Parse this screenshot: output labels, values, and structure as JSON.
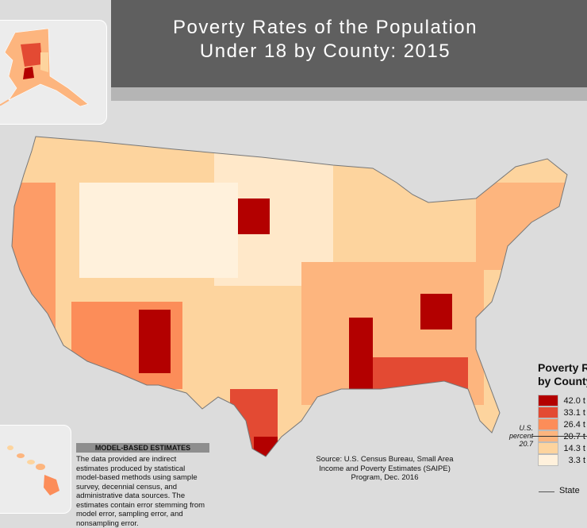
{
  "title": {
    "line1": "Poverty Rates of the Population",
    "line2": "Under 18 by County: 2015"
  },
  "model_based": {
    "heading": "MODEL-BASED ESTIMATES",
    "text": "The data provided are indirect estimates produced by statistical model-based methods using sample survey, decennial census, and administrative data sources. The estimates contain error stemming from model error, sampling error, and nonsampling error."
  },
  "source": "Source: U.S. Census Bureau, Small Area Income and Poverty Estimates (SAIPE) Program, Dec. 2016",
  "legend": {
    "title_line1": "Poverty R",
    "title_line2": "by County",
    "classes": [
      {
        "label": "42.0 t",
        "color": "#b30000"
      },
      {
        "label": "33.1 t",
        "color": "#e34a33"
      },
      {
        "label": "26.4 t",
        "color": "#fc8d59"
      },
      {
        "label": "20.7 t",
        "color": "#fdb57e"
      },
      {
        "label": "14.3 t",
        "color": "#fdd49e"
      },
      {
        "label": "3.3 t",
        "color": "#fff1dc"
      }
    ],
    "us_percent": {
      "line1": "U.S.",
      "line2": "percent",
      "value": "20.7"
    },
    "state_label": "State"
  }
}
